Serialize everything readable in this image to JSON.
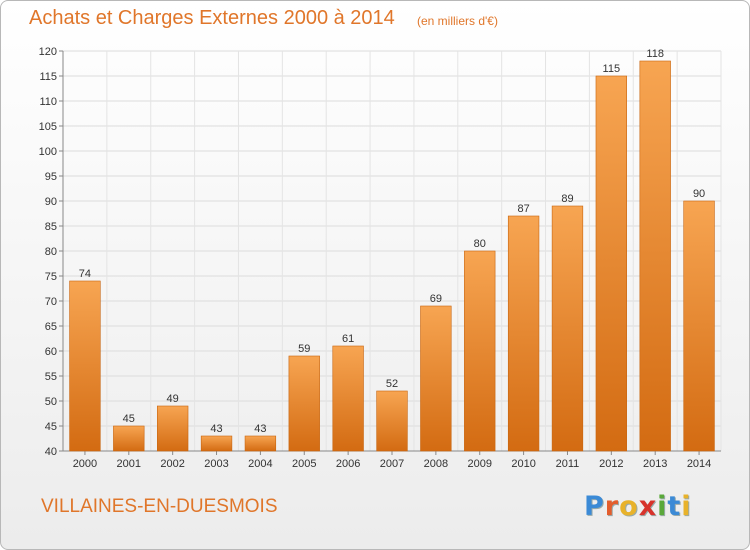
{
  "title": "Achats et Charges Externes 2000 à 2014",
  "unit_note": "(en milliers d'€)",
  "town": "VILLAINES-EN-DUESMOIS",
  "logo": {
    "letters": [
      "P",
      "r",
      "o",
      "x",
      "i",
      "t",
      "i"
    ],
    "colors": [
      "#3b8ad6",
      "#e35d2c",
      "#e8b22a",
      "#d7332b",
      "#5aa83a",
      "#3b8ad6",
      "#e8b22a"
    ]
  },
  "colors": {
    "accent": "#e0762a",
    "bar_light": "#f7a552",
    "bar_dark": "#d36b12"
  },
  "chart_data": {
    "type": "bar",
    "categories": [
      "2000",
      "2001",
      "2002",
      "2003",
      "2004",
      "2005",
      "2006",
      "2007",
      "2008",
      "2009",
      "2010",
      "2011",
      "2012",
      "2013",
      "2014"
    ],
    "values": [
      74,
      45,
      49,
      43,
      43,
      59,
      61,
      52,
      69,
      80,
      87,
      89,
      115,
      118,
      90
    ],
    "ylim": [
      40,
      120
    ],
    "yticks": [
      40,
      45,
      50,
      55,
      60,
      65,
      70,
      75,
      80,
      85,
      90,
      95,
      100,
      105,
      110,
      115,
      120
    ],
    "grid": true,
    "legend": "none"
  }
}
